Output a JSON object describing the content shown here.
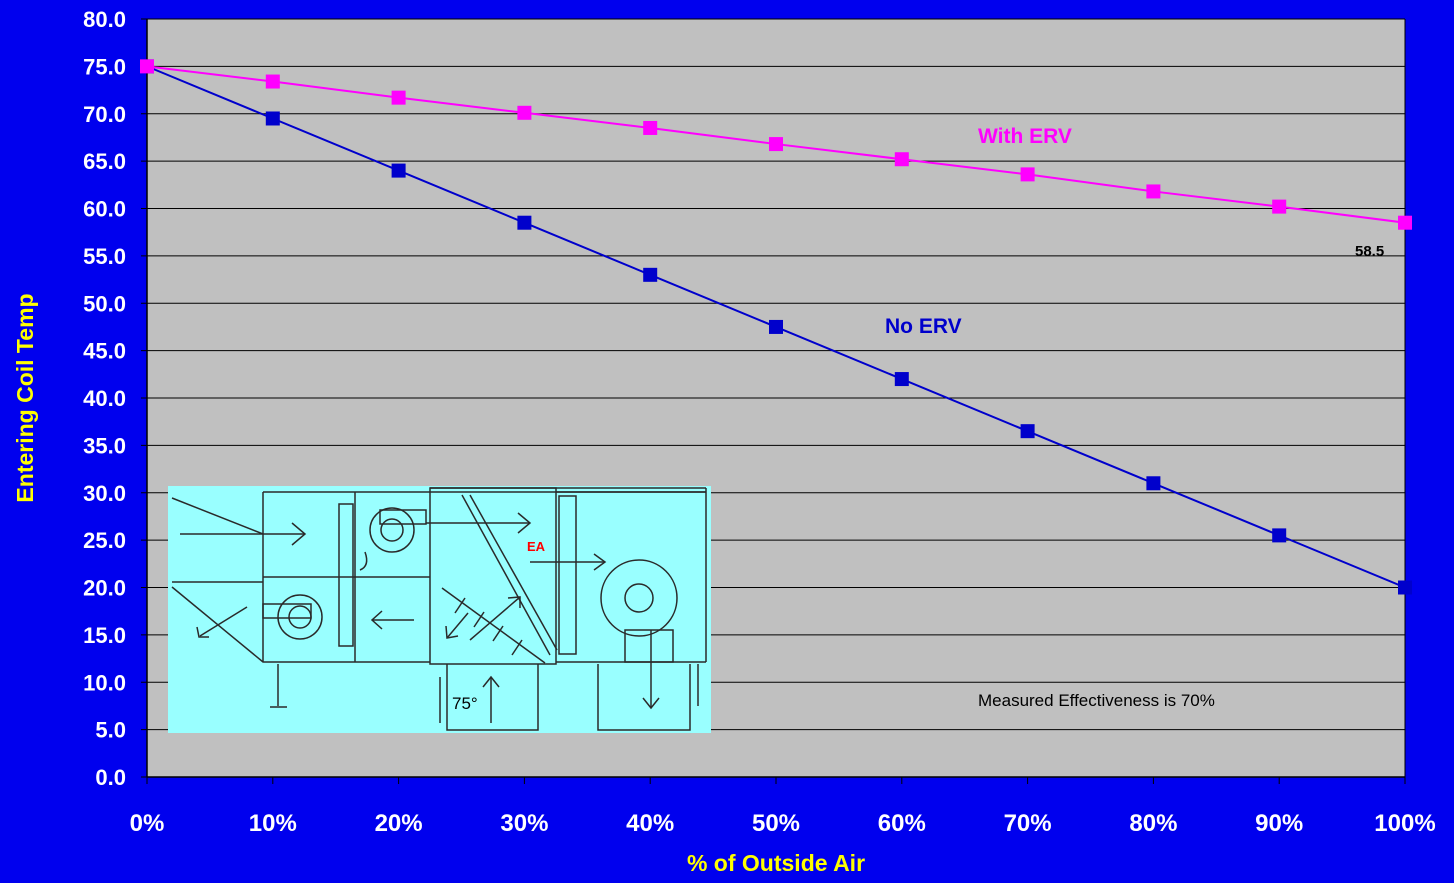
{
  "chart_data": {
    "type": "line",
    "x": [
      "0%",
      "10%",
      "20%",
      "30%",
      "40%",
      "50%",
      "60%",
      "70%",
      "80%",
      "90%",
      "100%"
    ],
    "ylabel": "Entering Coil Temp",
    "xlabel": "% of Outside Air",
    "ylim": [
      0,
      80
    ],
    "yticks": [
      "0.0",
      "5.0",
      "10.0",
      "15.0",
      "20.0",
      "25.0",
      "30.0",
      "35.0",
      "40.0",
      "45.0",
      "50.0",
      "55.0",
      "60.0",
      "65.0",
      "70.0",
      "75.0",
      "80.0"
    ],
    "grid": true,
    "series": [
      {
        "name": "With ERV",
        "color": "#FF00FF",
        "values": [
          75.0,
          73.4,
          71.7,
          70.1,
          68.5,
          66.8,
          65.2,
          63.6,
          61.8,
          60.2,
          58.5
        ]
      },
      {
        "name": "No ERV",
        "color": "#0000CC",
        "values": [
          75.0,
          69.5,
          64.0,
          58.5,
          53.0,
          47.5,
          42.0,
          36.5,
          31.0,
          25.5,
          20.0
        ]
      }
    ],
    "annotations": {
      "end_value_label": "58.5",
      "note": "Measured Effectiveness is 70%"
    },
    "inset_diagram": {
      "ea_label": "EA",
      "temp_label": "75°"
    }
  },
  "colors": {
    "background": "#0000EE",
    "plot_area": "#C0C0C0",
    "inset_background": "#99FFFF",
    "axis_title": "#FFFF00",
    "tick_text": "#FFFFFF"
  }
}
